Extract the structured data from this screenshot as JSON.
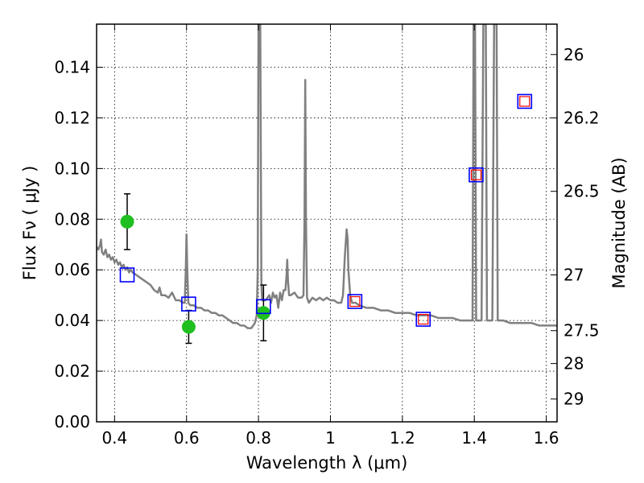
{
  "chart_data": {
    "type": "scatter",
    "xlabel": "Wavelength  λ (μm)",
    "ylabel": "Flux  Fν  ( μJy )",
    "y2label": "Magnitude (AB)",
    "xlim": [
      0.35,
      1.63
    ],
    "ylim": [
      0.0,
      0.157
    ],
    "grid": true,
    "x_ticks": [
      0.4,
      0.6,
      0.8,
      1.0,
      1.2,
      1.4,
      1.6
    ],
    "x_tick_labels": [
      "0.4",
      "0.6",
      "0.8",
      "1",
      "1.2",
      "1.4",
      "1.6"
    ],
    "y_ticks": [
      0.0,
      0.02,
      0.04,
      0.06,
      0.08,
      0.1,
      0.12,
      0.14
    ],
    "y_tick_labels": [
      "0.00",
      "0.02",
      "0.04",
      "0.06",
      "0.08",
      "0.10",
      "0.12",
      "0.14"
    ],
    "y2_ticks": [
      {
        "label": "26",
        "flux": 0.145
      },
      {
        "label": "26.2",
        "flux": 0.12
      },
      {
        "label": "26.5",
        "flux": 0.091
      },
      {
        "label": "27",
        "flux": 0.058
      },
      {
        "label": "27.5",
        "flux": 0.036
      },
      {
        "label": "28",
        "flux": 0.023
      },
      {
        "label": "29",
        "flux": 0.009
      }
    ],
    "series": [
      {
        "kind": "line",
        "color": "#808080",
        "points": [
          [
            0.35,
            0.069
          ],
          [
            0.355,
            0.068
          ],
          [
            0.36,
            0.07
          ],
          [
            0.362,
            0.072
          ],
          [
            0.365,
            0.067
          ],
          [
            0.37,
            0.066
          ],
          [
            0.375,
            0.068
          ],
          [
            0.38,
            0.065
          ],
          [
            0.385,
            0.066
          ],
          [
            0.39,
            0.064
          ],
          [
            0.395,
            0.065
          ],
          [
            0.4,
            0.063
          ],
          [
            0.405,
            0.064
          ],
          [
            0.41,
            0.062
          ],
          [
            0.415,
            0.063
          ],
          [
            0.42,
            0.061
          ],
          [
            0.425,
            0.062
          ],
          [
            0.43,
            0.06
          ],
          [
            0.435,
            0.061
          ],
          [
            0.44,
            0.059
          ],
          [
            0.445,
            0.06
          ],
          [
            0.45,
            0.059
          ],
          [
            0.46,
            0.058
          ],
          [
            0.47,
            0.057
          ],
          [
            0.48,
            0.056
          ],
          [
            0.49,
            0.055
          ],
          [
            0.5,
            0.054
          ],
          [
            0.51,
            0.052
          ],
          [
            0.52,
            0.051
          ],
          [
            0.525,
            0.053
          ],
          [
            0.53,
            0.05
          ],
          [
            0.54,
            0.05
          ],
          [
            0.55,
            0.049
          ],
          [
            0.56,
            0.051
          ],
          [
            0.57,
            0.048
          ],
          [
            0.58,
            0.048
          ],
          [
            0.59,
            0.047
          ],
          [
            0.595,
            0.047
          ],
          [
            0.598,
            0.06
          ],
          [
            0.6,
            0.074
          ],
          [
            0.602,
            0.06
          ],
          [
            0.605,
            0.047
          ],
          [
            0.61,
            0.046
          ],
          [
            0.62,
            0.046
          ],
          [
            0.63,
            0.045
          ],
          [
            0.64,
            0.045
          ],
          [
            0.65,
            0.044
          ],
          [
            0.66,
            0.044
          ],
          [
            0.67,
            0.043
          ],
          [
            0.68,
            0.043
          ],
          [
            0.69,
            0.042
          ],
          [
            0.7,
            0.042
          ],
          [
            0.71,
            0.041
          ],
          [
            0.72,
            0.04
          ],
          [
            0.73,
            0.039
          ],
          [
            0.74,
            0.039
          ],
          [
            0.75,
            0.038
          ],
          [
            0.76,
            0.038
          ],
          [
            0.77,
            0.037
          ],
          [
            0.78,
            0.037
          ],
          [
            0.79,
            0.039
          ],
          [
            0.795,
            0.042
          ],
          [
            0.798,
            0.06
          ],
          [
            0.8,
            0.157
          ],
          [
            0.805,
            0.157
          ],
          [
            0.808,
            0.055
          ],
          [
            0.81,
            0.048
          ],
          [
            0.82,
            0.048
          ],
          [
            0.83,
            0.05
          ],
          [
            0.835,
            0.047
          ],
          [
            0.84,
            0.051
          ],
          [
            0.845,
            0.049
          ],
          [
            0.85,
            0.05
          ],
          [
            0.855,
            0.045
          ],
          [
            0.86,
            0.051
          ],
          [
            0.865,
            0.048
          ],
          [
            0.87,
            0.052
          ],
          [
            0.875,
            0.052
          ],
          [
            0.878,
            0.058
          ],
          [
            0.88,
            0.064
          ],
          [
            0.882,
            0.056
          ],
          [
            0.885,
            0.05
          ],
          [
            0.89,
            0.05
          ],
          [
            0.9,
            0.051
          ],
          [
            0.91,
            0.049
          ],
          [
            0.92,
            0.049
          ],
          [
            0.925,
            0.05
          ],
          [
            0.928,
            0.08
          ],
          [
            0.93,
            0.135
          ],
          [
            0.932,
            0.08
          ],
          [
            0.935,
            0.049
          ],
          [
            0.94,
            0.047
          ],
          [
            0.95,
            0.049
          ],
          [
            0.96,
            0.048
          ],
          [
            0.97,
            0.049
          ],
          [
            0.98,
            0.048
          ],
          [
            0.99,
            0.049
          ],
          [
            1.0,
            0.048
          ],
          [
            1.01,
            0.048
          ],
          [
            1.02,
            0.047
          ],
          [
            1.03,
            0.047
          ],
          [
            1.035,
            0.05
          ],
          [
            1.04,
            0.065
          ],
          [
            1.045,
            0.076
          ],
          [
            1.048,
            0.072
          ],
          [
            1.05,
            0.06
          ],
          [
            1.055,
            0.05
          ],
          [
            1.06,
            0.047
          ],
          [
            1.07,
            0.047
          ],
          [
            1.08,
            0.046
          ],
          [
            1.1,
            0.045
          ],
          [
            1.12,
            0.045
          ],
          [
            1.14,
            0.044
          ],
          [
            1.16,
            0.044
          ],
          [
            1.18,
            0.043
          ],
          [
            1.2,
            0.043
          ],
          [
            1.22,
            0.043
          ],
          [
            1.24,
            0.042
          ],
          [
            1.26,
            0.042
          ],
          [
            1.28,
            0.042
          ],
          [
            1.3,
            0.041
          ],
          [
            1.32,
            0.041
          ],
          [
            1.34,
            0.041
          ],
          [
            1.36,
            0.04
          ],
          [
            1.38,
            0.04
          ],
          [
            1.395,
            0.04
          ],
          [
            1.398,
            0.157
          ],
          [
            1.402,
            0.157
          ],
          [
            1.405,
            0.04
          ],
          [
            1.42,
            0.04
          ],
          [
            1.425,
            0.157
          ],
          [
            1.432,
            0.157
          ],
          [
            1.435,
            0.04
          ],
          [
            1.45,
            0.04
          ],
          [
            1.455,
            0.157
          ],
          [
            1.462,
            0.157
          ],
          [
            1.465,
            0.04
          ],
          [
            1.48,
            0.04
          ],
          [
            1.5,
            0.039
          ],
          [
            1.52,
            0.039
          ],
          [
            1.54,
            0.039
          ],
          [
            1.56,
            0.039
          ],
          [
            1.58,
            0.038
          ],
          [
            1.6,
            0.038
          ],
          [
            1.63,
            0.038
          ]
        ]
      },
      {
        "kind": "markers",
        "marker": "circle",
        "color": "#1fbf1f",
        "points": [
          {
            "x": 0.435,
            "y": 0.079,
            "err": 0.011
          },
          {
            "x": 0.606,
            "y": 0.0375,
            "err": 0.0065
          },
          {
            "x": 0.814,
            "y": 0.043,
            "err": 0.011
          }
        ]
      },
      {
        "kind": "markers",
        "marker": "square-open",
        "color": "#0000ff",
        "points": [
          {
            "x": 0.435,
            "y": 0.058
          },
          {
            "x": 0.606,
            "y": 0.0465
          },
          {
            "x": 0.814,
            "y": 0.0455
          },
          {
            "x": 1.068,
            "y": 0.0475
          },
          {
            "x": 1.258,
            "y": 0.0405
          },
          {
            "x": 1.405,
            "y": 0.0975
          },
          {
            "x": 1.54,
            "y": 0.1265
          }
        ]
      },
      {
        "kind": "markers",
        "marker": "square-open-small",
        "color": "#ff0000",
        "points": [
          {
            "x": 1.068,
            "y": 0.0475
          },
          {
            "x": 1.258,
            "y": 0.0405
          },
          {
            "x": 1.405,
            "y": 0.0975
          },
          {
            "x": 1.54,
            "y": 0.1265
          }
        ]
      }
    ]
  }
}
